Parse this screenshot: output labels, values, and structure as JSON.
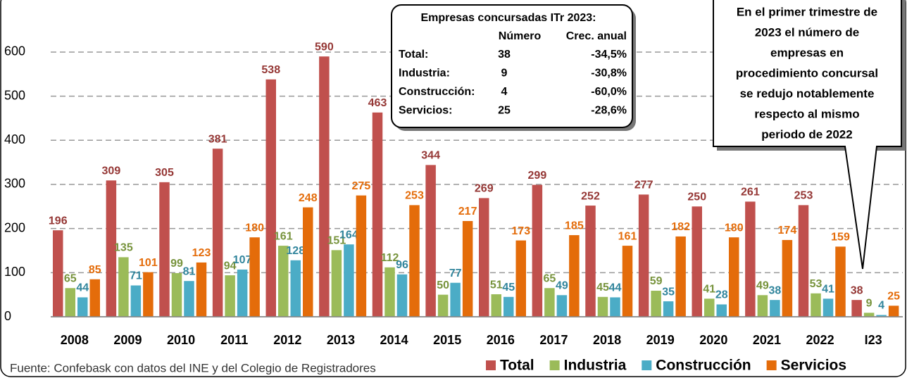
{
  "chart_data": {
    "type": "bar",
    "categories": [
      "2008",
      "2009",
      "2010",
      "2011",
      "2012",
      "2013",
      "2014",
      "2015",
      "2016",
      "2017",
      "2018",
      "2019",
      "2020",
      "2021",
      "2022",
      "I23"
    ],
    "series": [
      {
        "name": "Total",
        "color": "#c0504d",
        "label_color": "#953735",
        "values": [
          196,
          309,
          305,
          381,
          538,
          590,
          463,
          344,
          269,
          299,
          252,
          277,
          250,
          261,
          253,
          38
        ]
      },
      {
        "name": "Industria",
        "color": "#9bbb59",
        "label_color": "#77933c",
        "values": [
          65,
          135,
          99,
          94,
          161,
          151,
          112,
          50,
          51,
          65,
          45,
          59,
          41,
          49,
          53,
          9
        ]
      },
      {
        "name": "Construcción",
        "color": "#4bacc6",
        "label_color": "#31859c",
        "values": [
          44,
          71,
          81,
          107,
          128,
          164,
          96,
          77,
          45,
          49,
          44,
          35,
          28,
          38,
          41,
          4
        ]
      },
      {
        "name": "Servicios",
        "color": "#e46c0a",
        "label_color": "#e46c0a",
        "values": [
          85,
          101,
          123,
          180,
          248,
          275,
          253,
          217,
          173,
          185,
          161,
          182,
          180,
          174,
          159,
          25
        ]
      }
    ],
    "ylim": [
      0,
      718
    ],
    "yticks": [
      0,
      100,
      200,
      300,
      400,
      500,
      600
    ],
    "grid": true,
    "legend": "bottom right",
    "source": "Fuente: Confebask con datos del INE y del Colegio de Registradores",
    "table": {
      "title": "Empresas concursadas ITr 2023:",
      "header": [
        "Número",
        "Crec. anual"
      ],
      "rows": [
        [
          "Total:",
          "38",
          "-34,5%"
        ],
        [
          "Industria:",
          "9",
          "-30,8%"
        ],
        [
          "Construcción:",
          "4",
          "-60,0%"
        ],
        [
          "Servicios:",
          "25",
          "-28,6%"
        ]
      ]
    },
    "callout": [
      "En el primer trimestre de",
      "2023 el número de",
      "empresas en",
      "procedimiento concursal",
      "se redujo notablemente",
      "respecto al mismo",
      "periodo de  2022"
    ]
  }
}
